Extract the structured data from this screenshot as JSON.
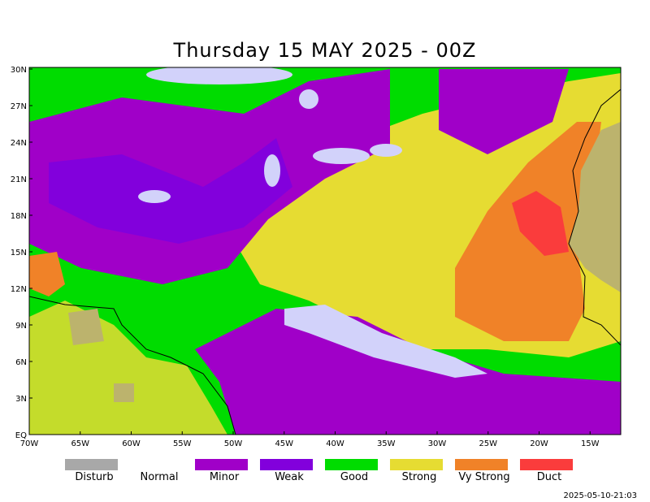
{
  "title": "Thursday 15 MAY 2025 - 00Z",
  "lat_labels": [
    "30N",
    "27N",
    "24N",
    "21N",
    "18N",
    "15N",
    "12N",
    "9N",
    "6N",
    "3N",
    "EQ"
  ],
  "lon_labels": [
    "70W",
    "65W",
    "60W",
    "55W",
    "50W",
    "45W",
    "40W",
    "35W",
    "30W",
    "25W",
    "20W",
    "15W"
  ],
  "legend": [
    {
      "label": "Disturb",
      "color": "#a8a8a8"
    },
    {
      "label": "Normal",
      "color": "#ffffff"
    },
    {
      "label": "Minor",
      "color": "#a000c8"
    },
    {
      "label": "Weak",
      "color": "#8200dc"
    },
    {
      "label": "Good",
      "color": "#00dc00"
    },
    {
      "label": "Strong",
      "color": "#e6dc32"
    },
    {
      "label": "Vy Strong",
      "color": "#f08228"
    },
    {
      "label": "Duct",
      "color": "#fa3c3c"
    }
  ],
  "timestamp": "2025-05-10-21:03"
}
